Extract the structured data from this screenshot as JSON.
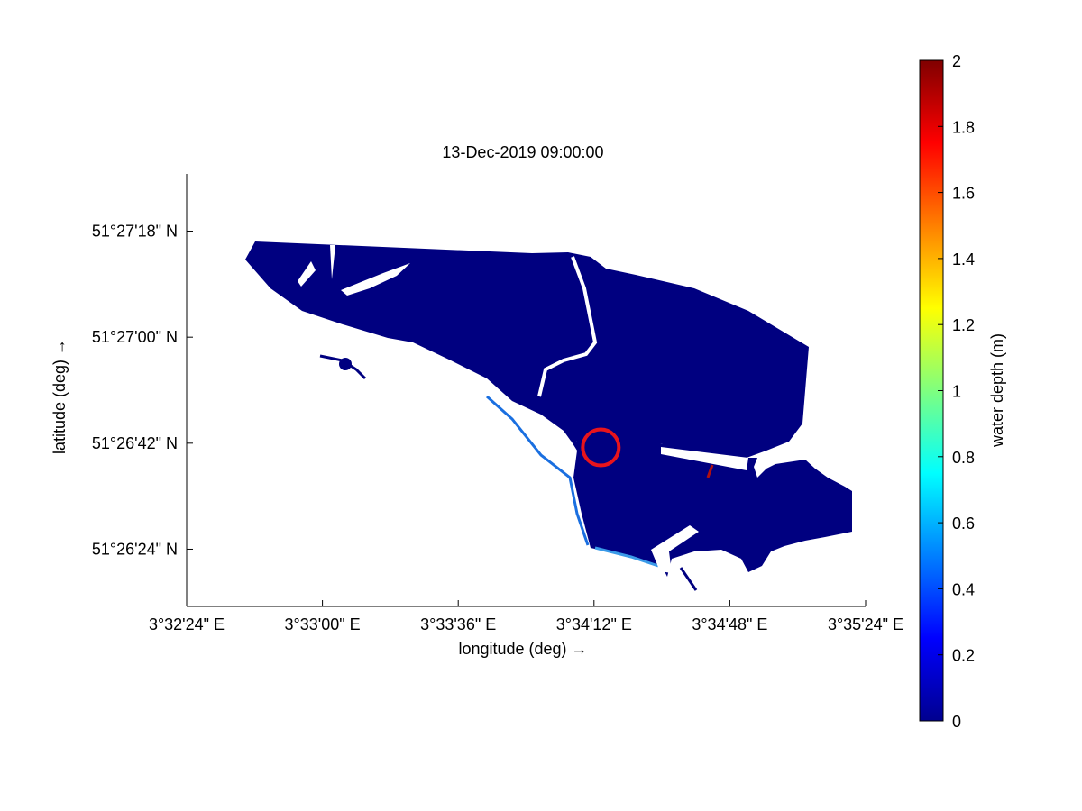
{
  "chart_data": {
    "type": "heatmap",
    "title": "13-Dec-2019 09:00:00",
    "xlabel": "longitude (deg) →",
    "ylabel": "latitude (deg) →",
    "x_ticks": [
      "3°32'24\" E",
      "3°33'00\" E",
      "3°33'36\" E",
      "3°34'12\" E",
      "3°34'48\" E",
      "3°35'24\" E"
    ],
    "y_ticks": [
      "51°27'18\" N",
      "51°27'00\" N",
      "51°26'42\" N",
      "51°26'24\" N"
    ],
    "x_tick_values_deg": [
      3.54,
      3.55,
      3.56,
      3.57,
      3.58,
      3.59
    ],
    "y_tick_values_deg": [
      51.455,
      51.45,
      51.445,
      51.44
    ],
    "xlim_deg": [
      3.54,
      3.59
    ],
    "ylim_deg": [
      51.4373,
      51.4577
    ],
    "colorbar": {
      "label": "water depth (m)",
      "range": [
        0,
        2
      ],
      "ticks": [
        "0",
        "0.2",
        "0.4",
        "0.6",
        "0.8",
        "1",
        "1.2",
        "1.4",
        "1.6",
        "1.8",
        "2"
      ],
      "tick_values": [
        0,
        0.2,
        0.4,
        0.6,
        0.8,
        1.0,
        1.2,
        1.4,
        1.6,
        1.8,
        2.0
      ],
      "colormap": "jet"
    },
    "field_value_m": 0,
    "marker": {
      "shape": "circle",
      "color": "#e8141c",
      "lon": 3.5705,
      "lat": 51.4448
    },
    "colors": {
      "water": "#000080",
      "shallow_edge": "#1a6fe0",
      "marker": "#e8141c",
      "background": "#ffffff"
    }
  }
}
